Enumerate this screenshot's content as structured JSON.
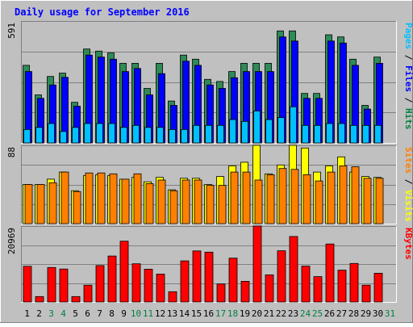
{
  "chart_data": [
    {
      "panel": "hits-files-pages",
      "type": "bar",
      "title": "Daily usage for September 2016",
      "y_tick_label": "591",
      "ylim": [
        0,
        591
      ],
      "ylabel_parts": [
        {
          "text": "Pages",
          "color": "#00c0ff"
        },
        {
          "text": " / ",
          "color": "#000000"
        },
        {
          "text": "Files",
          "color": "#0000ff"
        },
        {
          "text": " / ",
          "color": "#000000"
        },
        {
          "text": "Hits",
          "color": "#008040"
        }
      ],
      "categories": [
        "1",
        "2",
        "3",
        "4",
        "5",
        "6",
        "7",
        "8",
        "9",
        "10",
        "11",
        "12",
        "13",
        "14",
        "15",
        "16",
        "17",
        "18",
        "19",
        "20",
        "21",
        "22",
        "23",
        "24",
        "25",
        "26",
        "27",
        "28",
        "29",
        "30",
        "31"
      ],
      "series": [
        {
          "name": "Hits",
          "color": "#2e8b57",
          "values": [
            376,
            233,
            322,
            338,
            197,
            455,
            445,
            436,
            386,
            386,
            264,
            386,
            203,
            426,
            406,
            308,
            298,
            346,
            386,
            386,
            386,
            543,
            543,
            240,
            240,
            524,
            514,
            406,
            182,
            416,
            0
          ]
        },
        {
          "name": "Files",
          "color": "#0000ff",
          "values": [
            346,
            216,
            281,
            318,
            178,
            426,
            416,
            406,
            346,
            361,
            233,
            336,
            182,
            396,
            376,
            281,
            264,
            316,
            346,
            346,
            346,
            514,
            494,
            216,
            216,
            494,
            484,
            376,
            164,
            386,
            0
          ]
        },
        {
          "name": "Pages",
          "color": "#00c0ff",
          "values": [
            65,
            75,
            94,
            55,
            75,
            94,
            94,
            94,
            75,
            85,
            75,
            75,
            65,
            65,
            85,
            85,
            85,
            113,
            104,
            155,
            113,
            123,
            175,
            85,
            85,
            94,
            94,
            85,
            85,
            85,
            0
          ]
        }
      ]
    },
    {
      "panel": "visits-sites",
      "type": "bar",
      "y_tick_label": "88",
      "ylim": [
        0,
        88
      ],
      "ylabel_parts": [
        {
          "text": "Sites",
          "color": "#ff8000"
        },
        {
          "text": " / ",
          "color": "#000000"
        },
        {
          "text": "Visits",
          "color": "#ffff00"
        }
      ],
      "series": [
        {
          "name": "Visits",
          "color": "#ffff00",
          "values": [
            44,
            44,
            50,
            58,
            37,
            54,
            55,
            54,
            50,
            52,
            47,
            52,
            38,
            51,
            51,
            44,
            53,
            65,
            69,
            88,
            56,
            66,
            88,
            85,
            58,
            65,
            75,
            58,
            53,
            52,
            0
          ]
        },
        {
          "name": "Sites",
          "color": "#ff8000",
          "values": [
            44,
            44,
            46,
            58,
            36,
            57,
            57,
            56,
            50,
            56,
            45,
            49,
            37,
            49,
            49,
            43,
            43,
            58,
            58,
            49,
            55,
            62,
            61,
            55,
            48,
            58,
            65,
            64,
            51,
            51,
            0
          ]
        }
      ]
    },
    {
      "panel": "kbytes",
      "type": "bar",
      "y_tick_label": "20969",
      "ylim": [
        0,
        20969
      ],
      "ylabel_parts": [
        {
          "text": "KBytes",
          "color": "#ff0000"
        }
      ],
      "series": [
        {
          "name": "KBytes",
          "color": "#ff0000",
          "values": [
            9870,
            1490,
            9520,
            9100,
            1490,
            4640,
            10070,
            12700,
            16800,
            10560,
            9050,
            7700,
            2830,
            11350,
            14100,
            13770,
            4970,
            12110,
            5700,
            20969,
            7500,
            14150,
            18100,
            9900,
            7000,
            16020,
            8800,
            10650,
            4640,
            7950,
            0
          ]
        }
      ]
    }
  ],
  "x_labels": [
    {
      "day": "1",
      "weekend": false
    },
    {
      "day": "2",
      "weekend": false
    },
    {
      "day": "3",
      "weekend": true
    },
    {
      "day": "4",
      "weekend": true
    },
    {
      "day": "5",
      "weekend": false
    },
    {
      "day": "6",
      "weekend": false
    },
    {
      "day": "7",
      "weekend": false
    },
    {
      "day": "8",
      "weekend": false
    },
    {
      "day": "9",
      "weekend": false
    },
    {
      "day": "10",
      "weekend": true
    },
    {
      "day": "11",
      "weekend": true
    },
    {
      "day": "12",
      "weekend": false
    },
    {
      "day": "13",
      "weekend": false
    },
    {
      "day": "14",
      "weekend": false
    },
    {
      "day": "15",
      "weekend": false
    },
    {
      "day": "16",
      "weekend": false
    },
    {
      "day": "17",
      "weekend": true
    },
    {
      "day": "18",
      "weekend": true
    },
    {
      "day": "19",
      "weekend": false
    },
    {
      "day": "20",
      "weekend": false
    },
    {
      "day": "21",
      "weekend": false
    },
    {
      "day": "22",
      "weekend": false
    },
    {
      "day": "23",
      "weekend": false
    },
    {
      "day": "24",
      "weekend": true
    },
    {
      "day": "25",
      "weekend": true
    },
    {
      "day": "26",
      "weekend": false
    },
    {
      "day": "27",
      "weekend": false
    },
    {
      "day": "28",
      "weekend": false
    },
    {
      "day": "29",
      "weekend": false
    },
    {
      "day": "30",
      "weekend": false
    },
    {
      "day": "31",
      "weekend": true
    }
  ],
  "colors": {
    "background": "#c0c0c0",
    "title": "#0000ff",
    "grid": "#808080",
    "weekday_label": "#000000",
    "weekend_label": "#008040"
  }
}
